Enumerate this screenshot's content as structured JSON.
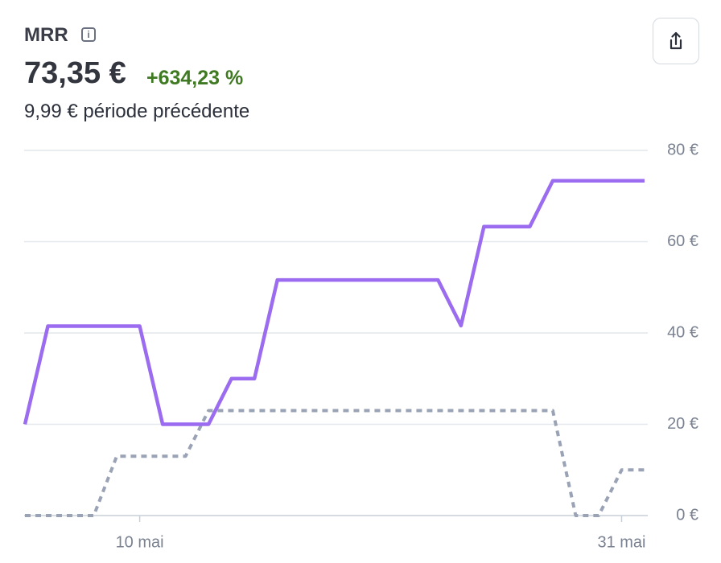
{
  "header": {
    "title": "MRR",
    "value": "73,35 €",
    "change": "+634,23 %",
    "previous": "9,99 € période précédente"
  },
  "chart_data": {
    "type": "line",
    "categories": [
      null,
      null,
      null,
      null,
      null,
      "10 mai",
      null,
      null,
      null,
      null,
      null,
      null,
      null,
      null,
      null,
      null,
      null,
      null,
      null,
      null,
      null,
      null,
      null,
      null,
      null,
      null,
      "31 mai",
      null
    ],
    "series": [
      {
        "color": "#9b6cf0",
        "dashed": false,
        "values": [
          20,
          41.5,
          41.5,
          41.5,
          41.5,
          41.5,
          20,
          20,
          20,
          30,
          30,
          51.6,
          51.6,
          51.6,
          51.6,
          51.6,
          51.6,
          51.6,
          51.6,
          41.6,
          63.3,
          63.3,
          63.3,
          73.35,
          73.35,
          73.35,
          73.35,
          73.35
        ]
      },
      {
        "color": "#9aa3b5",
        "dashed": true,
        "values": [
          0,
          0,
          0,
          0,
          13,
          13,
          13,
          13,
          23,
          23,
          23,
          23,
          23,
          23,
          23,
          23,
          23,
          23,
          23,
          23,
          23,
          23,
          23,
          23,
          0,
          0,
          9.99,
          9.99
        ]
      }
    ],
    "ylim": [
      0,
      80
    ],
    "yticks": [
      {
        "value": 0,
        "label": "0 €"
      },
      {
        "value": 20,
        "label": "20 €"
      },
      {
        "value": 40,
        "label": "40 €"
      },
      {
        "value": 60,
        "label": "60 €"
      },
      {
        "value": 80,
        "label": "80 €"
      }
    ],
    "grid": true
  }
}
